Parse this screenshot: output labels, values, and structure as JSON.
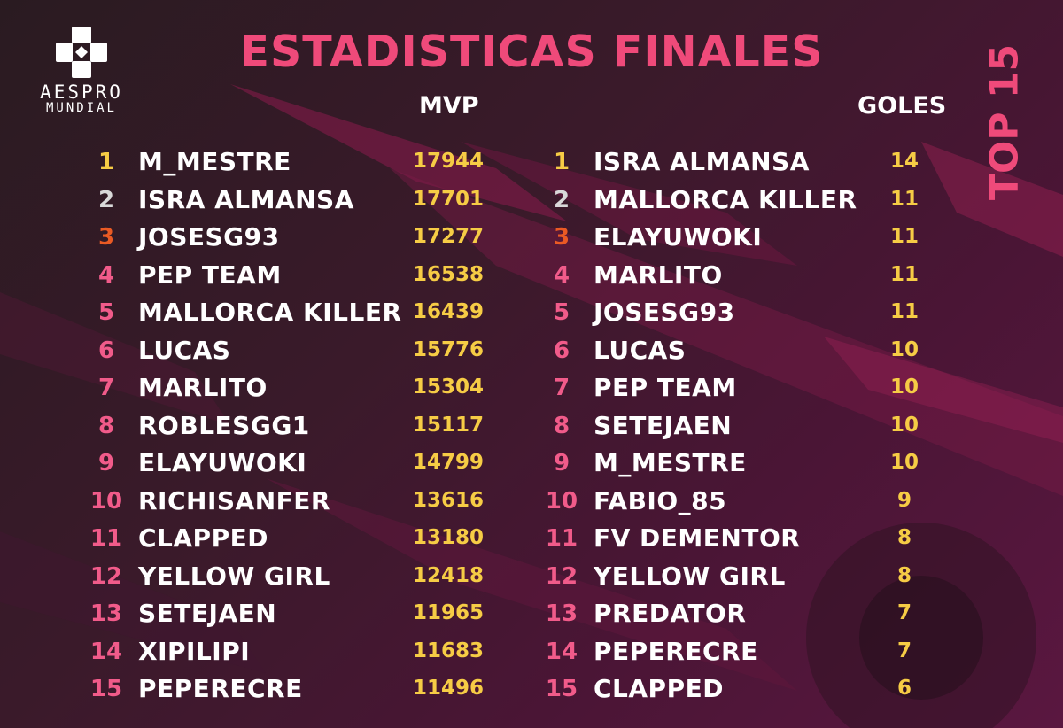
{
  "colors": {
    "accent": "#ef4a7a",
    "value": "#f6cc45",
    "rank_default": "#f15b8a",
    "rank_first": "#f6cc45",
    "rank_second": "#d9d9d9",
    "rank_third": "#ea5a24",
    "text": "#ffffff"
  },
  "logo": {
    "icon": "gamepad-cross-icon",
    "brand": "AESPRO",
    "subtitle": "MUNDIAL"
  },
  "title": "ESTADISTICAS FINALES",
  "side_label": "TOP 15",
  "mvp": {
    "header": "MVP",
    "rows": [
      {
        "rank": "1",
        "name": "M_MESTRE",
        "value": "17944"
      },
      {
        "rank": "2",
        "name": "ISRA ALMANSA",
        "value": "17701"
      },
      {
        "rank": "3",
        "name": "JOSESG93",
        "value": "17277"
      },
      {
        "rank": "4",
        "name": "PEP TEAM",
        "value": "16538"
      },
      {
        "rank": "5",
        "name": "MALLORCA KILLER",
        "value": "16439"
      },
      {
        "rank": "6",
        "name": "LUCAS",
        "value": "15776"
      },
      {
        "rank": "7",
        "name": "MARLITO",
        "value": "15304"
      },
      {
        "rank": "8",
        "name": "ROBLESGG1",
        "value": "15117"
      },
      {
        "rank": "9",
        "name": "ELAYUWOKI",
        "value": "14799"
      },
      {
        "rank": "10",
        "name": "RICHISANFER",
        "value": "13616"
      },
      {
        "rank": "11",
        "name": "CLAPPED",
        "value": "13180"
      },
      {
        "rank": "12",
        "name": "YELLOW GIRL",
        "value": "12418"
      },
      {
        "rank": "13",
        "name": "SETEJAEN",
        "value": "11965"
      },
      {
        "rank": "14",
        "name": "XIPILIPI",
        "value": "11683"
      },
      {
        "rank": "15",
        "name": "PEPERECRE",
        "value": "11496"
      }
    ]
  },
  "goles": {
    "header": "GOLES",
    "rows": [
      {
        "rank": "1",
        "name": "ISRA ALMANSA",
        "value": "14"
      },
      {
        "rank": "2",
        "name": "MALLORCA KILLER",
        "value": "11"
      },
      {
        "rank": "3",
        "name": "ELAYUWOKI",
        "value": "11"
      },
      {
        "rank": "4",
        "name": "MARLITO",
        "value": "11"
      },
      {
        "rank": "5",
        "name": "JOSESG93",
        "value": "11"
      },
      {
        "rank": "6",
        "name": "LUCAS",
        "value": "10"
      },
      {
        "rank": "7",
        "name": "PEP TEAM",
        "value": "10"
      },
      {
        "rank": "8",
        "name": "SETEJAEN",
        "value": "10"
      },
      {
        "rank": "9",
        "name": "M_MESTRE",
        "value": "10"
      },
      {
        "rank": "10",
        "name": "FABIO_85",
        "value": "9"
      },
      {
        "rank": "11",
        "name": "FV DEMENTOR",
        "value": "8"
      },
      {
        "rank": "12",
        "name": "YELLOW GIRL",
        "value": "8"
      },
      {
        "rank": "13",
        "name": "PREDATOR",
        "value": "7"
      },
      {
        "rank": "14",
        "name": "PEPERECRE",
        "value": "7"
      },
      {
        "rank": "15",
        "name": "CLAPPED",
        "value": "6"
      }
    ]
  }
}
